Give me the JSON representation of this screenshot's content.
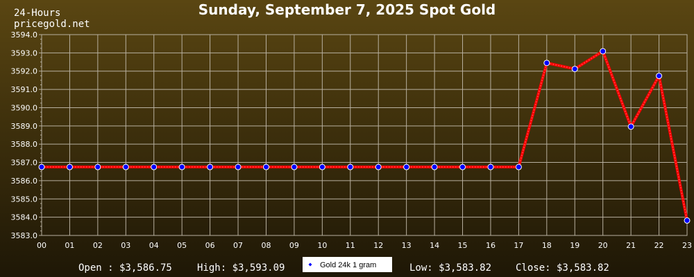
{
  "header": {
    "corner_line1": "24-Hours",
    "corner_line2": "pricegold.net"
  },
  "colors": {
    "line": "#ff0000",
    "marker_fill": "#0000ff",
    "marker_stroke": "#ffffff",
    "grid": "#b8b0a0",
    "text": "#ffffff"
  },
  "stats": {
    "open": "Open : $3,586.75",
    "high": "High: $3,593.09",
    "low": "Low: $3,583.82",
    "close": "Close: $3,583.82"
  },
  "chart_data": {
    "type": "line",
    "title": "Sunday, September 7, 2025 Spot Gold",
    "xlabel": "",
    "ylabel": "",
    "categories": [
      "00",
      "01",
      "02",
      "03",
      "04",
      "05",
      "06",
      "07",
      "08",
      "09",
      "10",
      "11",
      "12",
      "13",
      "14",
      "15",
      "16",
      "17",
      "18",
      "19",
      "20",
      "21",
      "22",
      "23"
    ],
    "ylim": [
      3583.0,
      3594.0
    ],
    "yticks": [
      "3583.0",
      "3584.0",
      "3585.0",
      "3586.0",
      "3587.0",
      "3588.0",
      "3589.0",
      "3590.0",
      "3591.0",
      "3592.0",
      "3593.0",
      "3594.0"
    ],
    "grid": true,
    "legend_position": "bottom-center",
    "series": [
      {
        "name": "Gold 24k 1 gram",
        "values": [
          3586.75,
          3586.75,
          3586.75,
          3586.75,
          3586.75,
          3586.75,
          3586.75,
          3586.75,
          3586.75,
          3586.75,
          3586.75,
          3586.75,
          3586.75,
          3586.75,
          3586.75,
          3586.75,
          3586.75,
          3586.75,
          3592.45,
          3592.12,
          3593.09,
          3588.96,
          3591.74,
          3583.82
        ]
      }
    ]
  }
}
